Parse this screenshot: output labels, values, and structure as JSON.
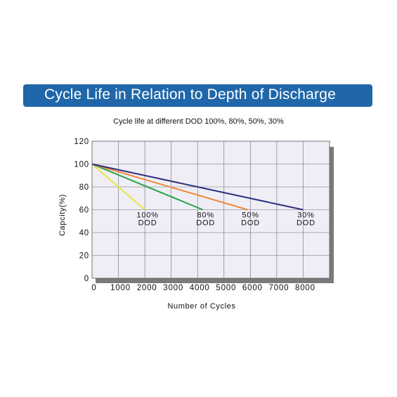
{
  "header": {
    "title": "Cycle  Life in Relation to Depth  of Discharge"
  },
  "chart_data": {
    "type": "line",
    "title": "Cycle  Life in Relation to Depth  of Discharge",
    "subtitle": "Cycle life at different DOD 100%, 80%, 50%, 30%",
    "xlabel": "Number of Cycles",
    "ylabel": "Capcity(%)",
    "xlim": [
      0,
      9000
    ],
    "ylim": [
      0,
      120
    ],
    "x_ticks": [
      0,
      1000,
      2000,
      3000,
      4000,
      5000,
      6000,
      7000,
      8000
    ],
    "y_ticks": [
      0,
      20,
      40,
      60,
      80,
      100,
      120
    ],
    "grid": true,
    "series": [
      {
        "name": "100% DOD",
        "line1": "100%",
        "line2": "DOD",
        "color": "#e8e640",
        "x": [
          0,
          2000
        ],
        "y": [
          100,
          60
        ]
      },
      {
        "name": "80% DOD",
        "line1": "80%",
        "line2": "DOD",
        "color": "#2aa24a",
        "x": [
          0,
          4200
        ],
        "y": [
          100,
          60
        ]
      },
      {
        "name": "50% DOD",
        "line1": "50%",
        "line2": "DOD",
        "color": "#ef8a3a",
        "x": [
          0,
          5900
        ],
        "y": [
          100,
          60
        ]
      },
      {
        "name": "30% DOD",
        "line1": "30%",
        "line2": "DOD",
        "color": "#2c2f7a",
        "x": [
          0,
          8000
        ],
        "y": [
          100,
          60
        ]
      }
    ]
  }
}
